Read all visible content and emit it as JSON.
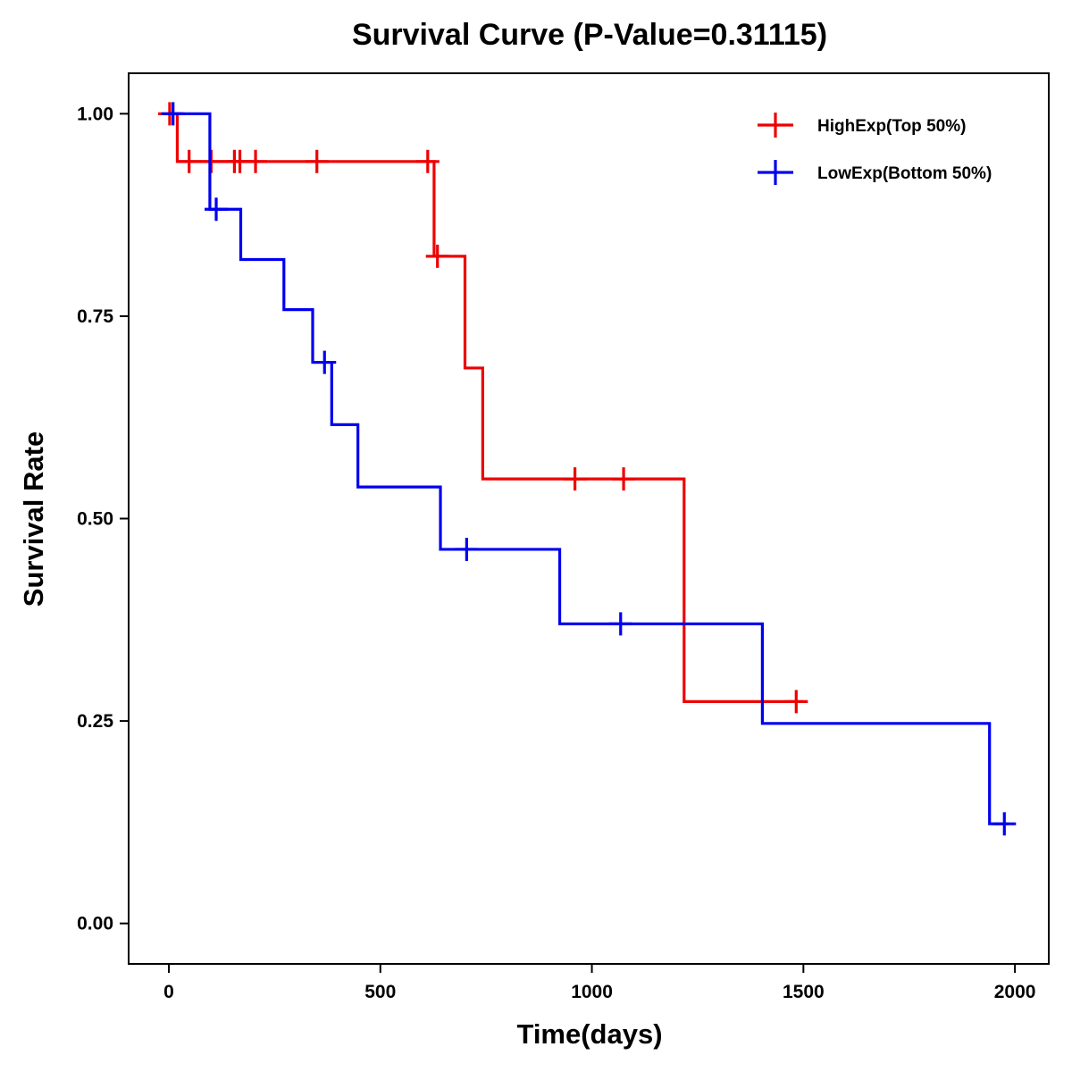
{
  "chart_data": {
    "type": "line",
    "subtype": "kaplan-meier step",
    "title": "Survival Curve (P-Value=0.31115)",
    "xlabel": "Time(days)",
    "ylabel": "Survival Rate",
    "xlim": [
      -95,
      2080
    ],
    "ylim": [
      -0.05,
      1.05
    ],
    "x_ticks": [
      0,
      500,
      1000,
      1500,
      2000
    ],
    "x_tick_labels": [
      "0",
      "500",
      "1000",
      "1500",
      "2000"
    ],
    "y_ticks": [
      0,
      0.25,
      0.5,
      0.75,
      1.0
    ],
    "y_tick_labels": [
      "0.00",
      "0.25",
      "0.50",
      "0.75",
      "1.00"
    ],
    "grid": false,
    "legend_position": "top-right",
    "series": [
      {
        "name": "HighExp(Top 50%)",
        "color": "#ee0000",
        "steps": [
          {
            "t": 0,
            "s": 1.0
          },
          {
            "t": 20,
            "s": 0.941
          },
          {
            "t": 627,
            "s": 0.824
          },
          {
            "t": 700,
            "s": 0.686
          },
          {
            "t": 742,
            "s": 0.549
          },
          {
            "t": 1218,
            "s": 0.274
          }
        ],
        "end_time": 1500,
        "censored": [
          {
            "t": 2,
            "s": 1.0
          },
          {
            "t": 48,
            "s": 0.941
          },
          {
            "t": 100,
            "s": 0.941
          },
          {
            "t": 155,
            "s": 0.941
          },
          {
            "t": 168,
            "s": 0.941
          },
          {
            "t": 205,
            "s": 0.941
          },
          {
            "t": 350,
            "s": 0.941
          },
          {
            "t": 612,
            "s": 0.941
          },
          {
            "t": 635,
            "s": 0.824
          },
          {
            "t": 960,
            "s": 0.549
          },
          {
            "t": 1075,
            "s": 0.549
          },
          {
            "t": 1483,
            "s": 0.274
          }
        ]
      },
      {
        "name": "LowExp(Bottom 50%)",
        "color": "#0000ee",
        "steps": [
          {
            "t": 0,
            "s": 1.0
          },
          {
            "t": 97,
            "s": 0.882
          },
          {
            "t": 170,
            "s": 0.82
          },
          {
            "t": 272,
            "s": 0.758
          },
          {
            "t": 340,
            "s": 0.693
          },
          {
            "t": 385,
            "s": 0.616
          },
          {
            "t": 447,
            "s": 0.539
          },
          {
            "t": 642,
            "s": 0.462
          },
          {
            "t": 924,
            "s": 0.37
          },
          {
            "t": 1403,
            "s": 0.247
          },
          {
            "t": 1940,
            "s": 0.123
          }
        ],
        "end_time": 1985,
        "censored": [
          {
            "t": 10,
            "s": 1.0
          },
          {
            "t": 112,
            "s": 0.882
          },
          {
            "t": 368,
            "s": 0.693
          },
          {
            "t": 704,
            "s": 0.462
          },
          {
            "t": 1068,
            "s": 0.37
          },
          {
            "t": 1975,
            "s": 0.123
          }
        ]
      }
    ]
  }
}
